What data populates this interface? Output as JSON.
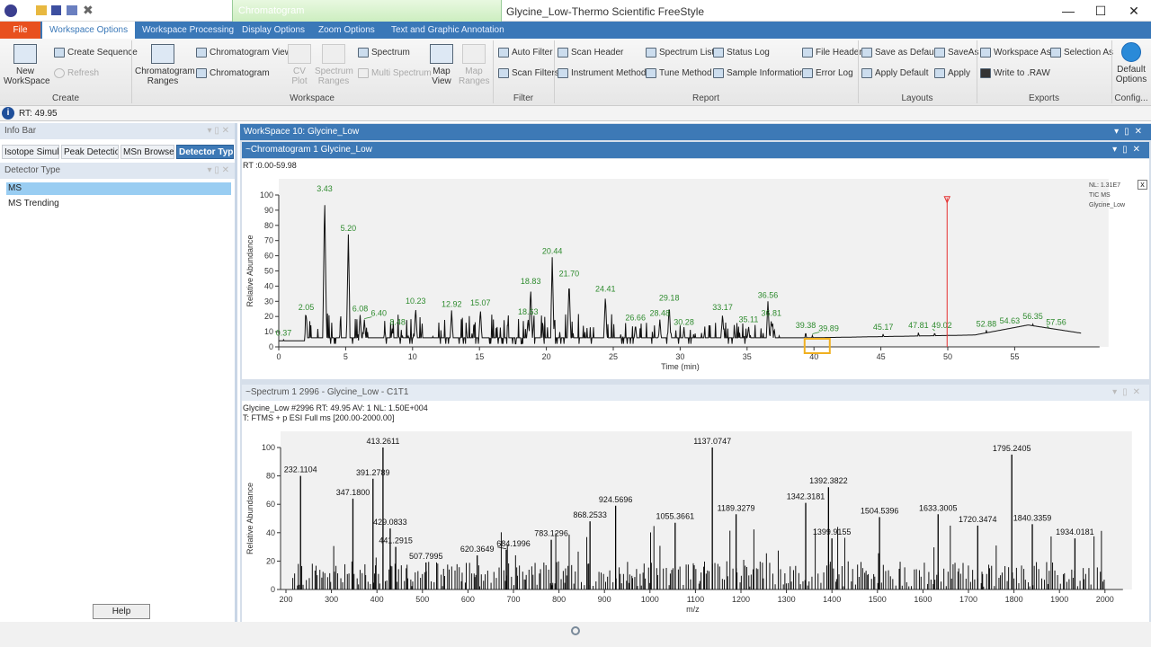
{
  "window": {
    "title": "Glycine_Low-Thermo Scientific FreeStyle",
    "context_tab": "Chromatogram",
    "minimize": "—",
    "maximize": "☐",
    "close": "✕"
  },
  "tabs": [
    {
      "label": "File"
    },
    {
      "label": "Workspace Options",
      "active": true
    },
    {
      "label": "Workspace Processing"
    },
    {
      "label": "Display Options"
    },
    {
      "label": "Zoom Options"
    },
    {
      "label": "Text and Graphic Annotation"
    }
  ],
  "ribbon": {
    "create": {
      "group": "Create",
      "new_workspace": "New WorkSpace",
      "create_sequence": "Create Sequence",
      "refresh": "Refresh"
    },
    "workspace": {
      "group": "Workspace",
      "chromatogram_ranges": "Chromatogram Ranges",
      "chromatogram_view": "Chromatogram View",
      "chromatogram": "Chromatogram",
      "cv_plot": "CV Plot",
      "spectrum_ranges": "Spectrum Ranges",
      "spectrum": "Spectrum",
      "multi_spectrum": "Multi Spectrum",
      "map_view": "Map View",
      "map_ranges": "Map Ranges"
    },
    "filter": {
      "group": "Filter",
      "auto_filter": "Auto Filter",
      "scan_filters": "Scan Filters"
    },
    "report": {
      "group": "Report",
      "scan_header": "Scan Header",
      "instrument_method": "Instrument Method",
      "spectrum_list": "Spectrum List",
      "tune_method": "Tune Method",
      "status_log": "Status Log",
      "sample_information": "Sample Information",
      "file_header": "File Header",
      "error_log": "Error Log"
    },
    "layouts": {
      "group": "Layouts",
      "save_as_default": "Save as Default",
      "apply_default": "Apply Default",
      "save_as": "SaveAs",
      "apply": "Apply"
    },
    "exports": {
      "group": "Exports",
      "workspace_as": "Workspace As",
      "selection_as": "Selection As",
      "write_to_raw": "Write to .RAW"
    },
    "config": {
      "group": "Config...",
      "default_options": "Default Options"
    }
  },
  "status": {
    "rt": "RT: 49.95"
  },
  "left": {
    "info_bar": "Info Bar",
    "tabs": [
      "Isotope Simul.",
      "Peak Detectio",
      "MSn Browser",
      "Detector Typ"
    ],
    "active_tab": 3,
    "detector_type_title": "Detector Type",
    "items": [
      "MS",
      "MS Trending"
    ],
    "selected": 0,
    "help": "Help"
  },
  "workspace": {
    "title": "WorkSpace 10: Glycine_Low"
  },
  "chromatogram_pane": {
    "title": "~Chromatogram  1  Glycine_Low",
    "range": "RT :0.00-59.98",
    "info": [
      "NL: 1.31E7",
      "TIC  MS",
      "Glycine_Low"
    ]
  },
  "spectrum_pane": {
    "title": "~Spectrum  1  2996 - Glycine_Low - C1T1",
    "line1": "Glycine_Low #2996 RT: 49.95 AV: 1 NL: 1.50E+004",
    "line2": "T: FTMS + p ESI Full ms [200.00-2000.00]"
  },
  "chart_data": [
    {
      "type": "line",
      "xlabel": "Time (min)",
      "ylabel": "Relative Abundance",
      "xlim": [
        0,
        60
      ],
      "ylim": [
        0,
        100
      ],
      "xticks": [
        0,
        5,
        10,
        15,
        20,
        25,
        30,
        35,
        40,
        45,
        50,
        55
      ],
      "yticks": [
        0,
        10,
        20,
        30,
        40,
        50,
        60,
        70,
        80,
        90,
        100
      ],
      "cursor_rt": 49.95,
      "label_color": "#2e8b2e",
      "cursor_color": "#e53030",
      "peaks": [
        {
          "x": 0.37,
          "y": 5
        },
        {
          "x": 2.05,
          "y": 22
        },
        {
          "x": 3.43,
          "y": 100
        },
        {
          "x": 5.2,
          "y": 74
        },
        {
          "x": 6.08,
          "y": 21
        },
        {
          "x": 6.4,
          "y": 18
        },
        {
          "x": 8.48,
          "y": 12
        },
        {
          "x": 10.23,
          "y": 26
        },
        {
          "x": 12.92,
          "y": 24
        },
        {
          "x": 15.07,
          "y": 25
        },
        {
          "x": 18.63,
          "y": 19
        },
        {
          "x": 18.83,
          "y": 39
        },
        {
          "x": 20.44,
          "y": 59
        },
        {
          "x": 21.7,
          "y": 44
        },
        {
          "x": 24.41,
          "y": 34
        },
        {
          "x": 26.66,
          "y": 15
        },
        {
          "x": 28.48,
          "y": 18
        },
        {
          "x": 29.18,
          "y": 28
        },
        {
          "x": 30.28,
          "y": 12
        },
        {
          "x": 33.17,
          "y": 22
        },
        {
          "x": 35.11,
          "y": 14
        },
        {
          "x": 36.56,
          "y": 30
        },
        {
          "x": 36.81,
          "y": 18
        },
        {
          "x": 39.38,
          "y": 10
        },
        {
          "x": 39.89,
          "y": 8
        },
        {
          "x": 45.17,
          "y": 9
        },
        {
          "x": 47.81,
          "y": 10
        },
        {
          "x": 49.02,
          "y": 10
        },
        {
          "x": 52.88,
          "y": 11
        },
        {
          "x": 54.63,
          "y": 13
        },
        {
          "x": 56.35,
          "y": 16
        },
        {
          "x": 57.56,
          "y": 12
        }
      ]
    },
    {
      "type": "bar",
      "xlabel": "m/z",
      "ylabel": "Relative Abundance",
      "xlim": [
        180,
        2040
      ],
      "ylim": [
        0,
        100
      ],
      "xticks": [
        200,
        300,
        400,
        500,
        600,
        700,
        800,
        900,
        1000,
        1100,
        1200,
        1300,
        1400,
        1500,
        1600,
        1700,
        1800,
        1900,
        2000
      ],
      "yticks": [
        0,
        20,
        40,
        60,
        80,
        100
      ],
      "peaks": [
        {
          "x": 232.1104,
          "y": 80
        },
        {
          "x": 347.18,
          "y": 64
        },
        {
          "x": 391.2789,
          "y": 78
        },
        {
          "x": 413.2611,
          "y": 100
        },
        {
          "x": 429.0833,
          "y": 43
        },
        {
          "x": 441.2915,
          "y": 30
        },
        {
          "x": 507.7995,
          "y": 19
        },
        {
          "x": 620.3649,
          "y": 24
        },
        {
          "x": 684.1996,
          "y": 28
        },
        {
          "x": 783.1296,
          "y": 35
        },
        {
          "x": 868.2533,
          "y": 48
        },
        {
          "x": 924.5696,
          "y": 59
        },
        {
          "x": 1055.3661,
          "y": 47
        },
        {
          "x": 1137.0747,
          "y": 100
        },
        {
          "x": 1189.3279,
          "y": 53
        },
        {
          "x": 1342.3181,
          "y": 61
        },
        {
          "x": 1392.3822,
          "y": 72
        },
        {
          "x": 1399.9155,
          "y": 36
        },
        {
          "x": 1504.5396,
          "y": 51
        },
        {
          "x": 1633.3005,
          "y": 53
        },
        {
          "x": 1720.3474,
          "y": 45
        },
        {
          "x": 1795.2405,
          "y": 95
        },
        {
          "x": 1840.3359,
          "y": 46
        },
        {
          "x": 1934.0181,
          "y": 36
        }
      ]
    }
  ]
}
